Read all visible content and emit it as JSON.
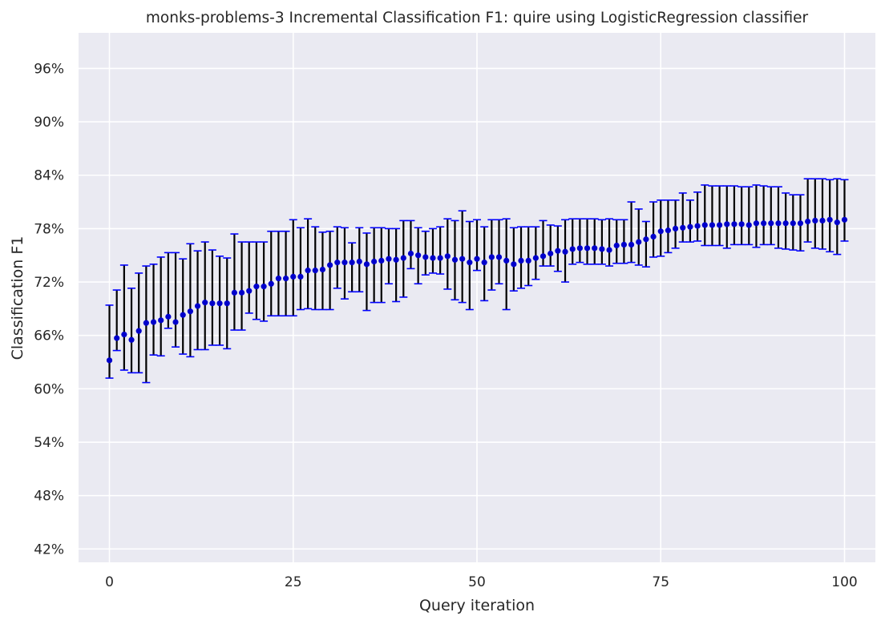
{
  "chart_data": {
    "type": "scatter",
    "title": "monks-problems-3 Incremental Classification F1: quire using LogisticRegression classifier",
    "xlabel": "Query iteration",
    "ylabel": "Classification F1",
    "xlim": [
      -4.2,
      104.2
    ],
    "ylim": [
      0.405,
      1.0
    ],
    "xticks": [
      0,
      25,
      50,
      75,
      100
    ],
    "yticks": [
      0.42,
      0.48,
      0.54,
      0.6,
      0.66,
      0.72,
      0.78,
      0.84,
      0.9,
      0.96
    ],
    "ytick_labels": [
      "42%",
      "48%",
      "54%",
      "60%",
      "66%",
      "72%",
      "78%",
      "84%",
      "90%",
      "96%"
    ],
    "grid": true,
    "colors": {
      "background": "#eaeaf2",
      "grid": "#ffffff",
      "marker": "#0000cc",
      "errorbar": "#000000",
      "caps": "#0000ff"
    },
    "series": [
      {
        "x": [
          0,
          1,
          2,
          3,
          4,
          5,
          6,
          7,
          8,
          9,
          10,
          11,
          12,
          13,
          14,
          15,
          16,
          17,
          18,
          19,
          20,
          21,
          22,
          23,
          24,
          25,
          26,
          27,
          28,
          29,
          30,
          31,
          32,
          33,
          34,
          35,
          36,
          37,
          38,
          39,
          40,
          41,
          42,
          43,
          44,
          45,
          46,
          47,
          48,
          49,
          50,
          51,
          52,
          53,
          54,
          55,
          56,
          57,
          58,
          59,
          60,
          61,
          62,
          63,
          64,
          65,
          66,
          67,
          68,
          69,
          70,
          71,
          72,
          73,
          74,
          75,
          76,
          77,
          78,
          79,
          80,
          81,
          82,
          83,
          84,
          85,
          86,
          87,
          88,
          89,
          90,
          91,
          92,
          93,
          94,
          95,
          96,
          97,
          98,
          99,
          100
        ],
        "y": [
          0.632,
          0.657,
          0.661,
          0.655,
          0.665,
          0.674,
          0.675,
          0.677,
          0.681,
          0.675,
          0.683,
          0.687,
          0.693,
          0.697,
          0.696,
          0.696,
          0.696,
          0.708,
          0.708,
          0.71,
          0.715,
          0.715,
          0.718,
          0.724,
          0.724,
          0.726,
          0.726,
          0.733,
          0.733,
          0.734,
          0.739,
          0.742,
          0.742,
          0.742,
          0.743,
          0.74,
          0.743,
          0.744,
          0.746,
          0.745,
          0.747,
          0.752,
          0.75,
          0.748,
          0.747,
          0.747,
          0.749,
          0.745,
          0.746,
          0.742,
          0.746,
          0.742,
          0.748,
          0.748,
          0.744,
          0.74,
          0.744,
          0.744,
          0.747,
          0.749,
          0.752,
          0.755,
          0.754,
          0.757,
          0.758,
          0.758,
          0.758,
          0.757,
          0.756,
          0.761,
          0.762,
          0.762,
          0.765,
          0.768,
          0.771,
          0.777,
          0.778,
          0.78,
          0.781,
          0.782,
          0.783,
          0.784,
          0.784,
          0.784,
          0.785,
          0.785,
          0.785,
          0.784,
          0.786,
          0.786,
          0.786,
          0.786,
          0.786,
          0.786,
          0.786,
          0.788,
          0.789,
          0.789,
          0.79,
          0.787,
          0.79
        ],
        "err_low": [
          0.612,
          0.643,
          0.621,
          0.618,
          0.618,
          0.607,
          0.638,
          0.637,
          0.668,
          0.647,
          0.639,
          0.636,
          0.644,
          0.644,
          0.649,
          0.649,
          0.645,
          0.666,
          0.666,
          0.685,
          0.678,
          0.676,
          0.682,
          0.682,
          0.682,
          0.682,
          0.689,
          0.69,
          0.689,
          0.689,
          0.689,
          0.713,
          0.701,
          0.709,
          0.709,
          0.688,
          0.697,
          0.697,
          0.718,
          0.698,
          0.703,
          0.735,
          0.718,
          0.728,
          0.73,
          0.729,
          0.712,
          0.7,
          0.697,
          0.689,
          0.733,
          0.699,
          0.711,
          0.718,
          0.689,
          0.71,
          0.713,
          0.716,
          0.723,
          0.738,
          0.738,
          0.732,
          0.72,
          0.74,
          0.742,
          0.74,
          0.74,
          0.74,
          0.738,
          0.741,
          0.741,
          0.742,
          0.739,
          0.737,
          0.748,
          0.749,
          0.753,
          0.758,
          0.765,
          0.765,
          0.766,
          0.761,
          0.761,
          0.761,
          0.758,
          0.762,
          0.762,
          0.762,
          0.759,
          0.762,
          0.762,
          0.758,
          0.757,
          0.756,
          0.755,
          0.765,
          0.758,
          0.757,
          0.754,
          0.751,
          0.766
        ],
        "err_high": [
          0.694,
          0.711,
          0.739,
          0.713,
          0.73,
          0.738,
          0.74,
          0.748,
          0.753,
          0.753,
          0.746,
          0.763,
          0.755,
          0.765,
          0.756,
          0.749,
          0.747,
          0.774,
          0.765,
          0.765,
          0.765,
          0.765,
          0.777,
          0.777,
          0.777,
          0.79,
          0.781,
          0.791,
          0.782,
          0.776,
          0.777,
          0.782,
          0.781,
          0.764,
          0.781,
          0.775,
          0.781,
          0.781,
          0.78,
          0.78,
          0.789,
          0.789,
          0.781,
          0.777,
          0.78,
          0.782,
          0.791,
          0.789,
          0.8,
          0.788,
          0.79,
          0.782,
          0.79,
          0.79,
          0.791,
          0.781,
          0.782,
          0.782,
          0.782,
          0.789,
          0.784,
          0.783,
          0.79,
          0.791,
          0.791,
          0.791,
          0.791,
          0.79,
          0.791,
          0.79,
          0.79,
          0.81,
          0.802,
          0.788,
          0.81,
          0.812,
          0.812,
          0.812,
          0.82,
          0.812,
          0.821,
          0.829,
          0.828,
          0.828,
          0.828,
          0.828,
          0.827,
          0.827,
          0.829,
          0.828,
          0.827,
          0.827,
          0.82,
          0.818,
          0.818,
          0.836,
          0.836,
          0.836,
          0.835,
          0.836,
          0.835
        ]
      }
    ]
  }
}
